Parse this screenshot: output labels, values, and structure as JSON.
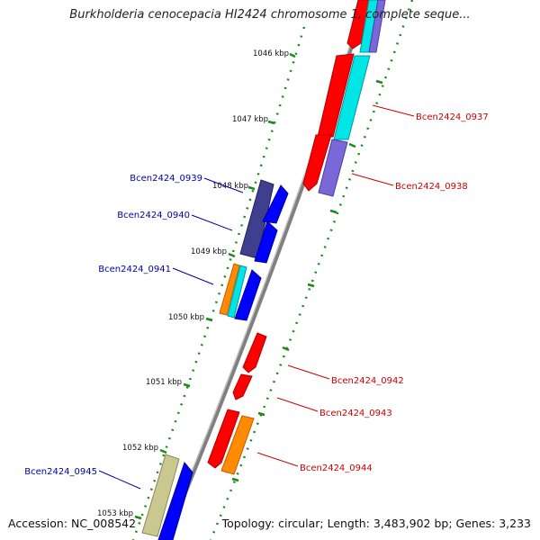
{
  "title": "Burkholderia cenocepacia HI2424 chromosome 1, complete seque...",
  "footer": {
    "accession": "Accession: NC_008542",
    "summary": "Topology: circular; Length: 3,483,902 bp; Genes: 3,233"
  },
  "ticks": [
    "1046 kbp",
    "1047 kbp",
    "1048 kbp",
    "1049 kbp",
    "1050 kbp",
    "1051 kbp",
    "1052 kbp",
    "1053 kbp"
  ],
  "genes_reverse": [
    "Bcen2424_0939",
    "Bcen2424_0940",
    "Bcen2424_0941",
    "Bcen2424_0945"
  ],
  "genes_forward": [
    "Bcen2424_0937",
    "Bcen2424_0938",
    "Bcen2424_0942",
    "Bcen2424_0943",
    "Bcen2424_0944"
  ],
  "colors": {
    "forward_label": "#cc0000",
    "reverse_label": "#0000aa",
    "red": "#ff0000",
    "blue": "#0000ff",
    "cyan": "#00e5e5",
    "orange": "#ff8c00",
    "slate": "#3f3f8f",
    "lavender": "#7b68d8",
    "khaki": "#c8c890",
    "backbone": "#7f7f7f",
    "tick": "#1a8a1a"
  }
}
